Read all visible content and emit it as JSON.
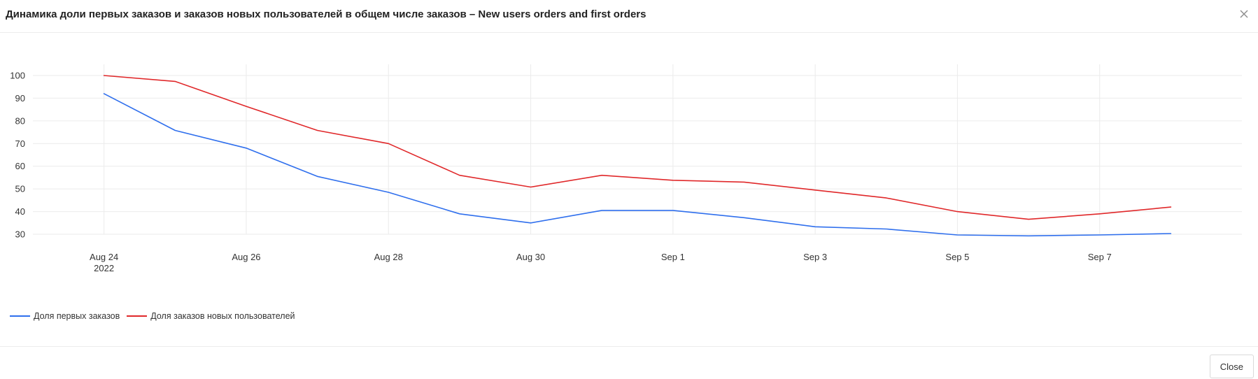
{
  "dialog": {
    "title": "Динамика доли первых заказов и заказов новых пользователей в общем числе заказов – New users orders and first orders",
    "close_button_label": "Close",
    "close_icon": "close-icon"
  },
  "chart_data": {
    "type": "line",
    "title": "",
    "xlabel": "",
    "ylabel": "",
    "x": [
      "2022-08-24",
      "2022-08-25",
      "2022-08-26",
      "2022-08-27",
      "2022-08-28",
      "2022-08-29",
      "2022-08-30",
      "2022-08-31",
      "2022-09-01",
      "2022-09-02",
      "2022-09-03",
      "2022-09-04",
      "2022-09-05",
      "2022-09-06",
      "2022-09-07",
      "2022-09-08"
    ],
    "x_ticks": [
      {
        "x": "2022-08-24",
        "label": "Aug 24",
        "sublabel": "2022"
      },
      {
        "x": "2022-08-26",
        "label": "Aug 26",
        "sublabel": ""
      },
      {
        "x": "2022-08-28",
        "label": "Aug 28",
        "sublabel": ""
      },
      {
        "x": "2022-08-30",
        "label": "Aug 30",
        "sublabel": ""
      },
      {
        "x": "2022-09-01",
        "label": "Sep 1",
        "sublabel": ""
      },
      {
        "x": "2022-09-03",
        "label": "Sep 3",
        "sublabel": ""
      },
      {
        "x": "2022-09-05",
        "label": "Sep 5",
        "sublabel": ""
      },
      {
        "x": "2022-09-07",
        "label": "Sep 7",
        "sublabel": ""
      }
    ],
    "xlim": [
      "2022-08-23",
      "2022-09-09"
    ],
    "y_ticks": [
      30,
      40,
      50,
      60,
      70,
      80,
      90,
      100
    ],
    "ylim": [
      30,
      100
    ],
    "grid": true,
    "legend_position": "bottom-left",
    "series": [
      {
        "name": "Доля первых заказов",
        "color": "#2f6fed",
        "values": [
          92,
          75.8,
          68,
          55.5,
          48.5,
          39,
          35,
          40.5,
          40.5,
          37.3,
          33.3,
          32.3,
          29.7,
          29.3,
          29.7,
          30.3
        ]
      },
      {
        "name": "Доля заказов новых пользователей",
        "color": "#e0282a",
        "values": [
          100,
          97.4,
          86.4,
          75.8,
          70,
          56,
          50.8,
          56,
          53.8,
          53,
          49.5,
          46,
          40,
          36.6,
          39,
          42
        ]
      }
    ]
  }
}
